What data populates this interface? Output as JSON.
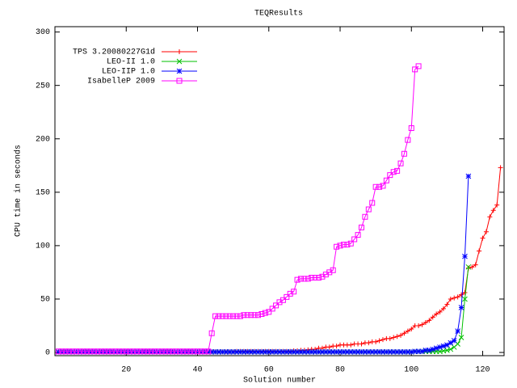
{
  "chart_data": {
    "type": "line",
    "title": "TEQResults",
    "x_label": "Solution number",
    "y_label": "CPU time in seconds",
    "xlim": [
      0,
      126
    ],
    "ylim": [
      -3,
      305
    ],
    "xticks": [
      20,
      40,
      60,
      80,
      100,
      120
    ],
    "yticks": [
      0,
      50,
      100,
      150,
      200,
      250,
      300
    ],
    "grid": false,
    "legend": "top-left",
    "x": [
      1,
      2,
      3,
      4,
      5,
      6,
      7,
      8,
      9,
      10,
      11,
      12,
      13,
      14,
      15,
      16,
      17,
      18,
      19,
      20,
      21,
      22,
      23,
      24,
      25,
      26,
      27,
      28,
      29,
      30,
      31,
      32,
      33,
      34,
      35,
      36,
      37,
      38,
      39,
      40,
      41,
      42,
      43,
      44,
      45,
      46,
      47,
      48,
      49,
      50,
      51,
      52,
      53,
      54,
      55,
      56,
      57,
      58,
      59,
      60,
      61,
      62,
      63,
      64,
      65,
      66,
      67,
      68,
      69,
      70,
      71,
      72,
      73,
      74,
      75,
      76,
      77,
      78,
      79,
      80,
      81,
      82,
      83,
      84,
      85,
      86,
      87,
      88,
      89,
      90,
      91,
      92,
      93,
      94,
      95,
      96,
      97,
      98,
      99,
      100,
      101,
      102,
      103,
      104,
      105,
      106,
      107,
      108,
      109,
      110,
      111,
      112,
      113,
      114,
      115,
      116,
      117,
      118,
      119,
      120,
      121,
      122,
      123,
      124,
      125
    ],
    "series": [
      {
        "name": "TPS 3.20080227G1d",
        "color": "#ff0000",
        "marker": "plus",
        "values": [
          0.5,
          0.5,
          0.5,
          0.5,
          0.5,
          0.5,
          0.5,
          0.5,
          0.5,
          0.5,
          0.5,
          0.5,
          0.5,
          0.5,
          0.5,
          0.5,
          0.5,
          0.5,
          0.5,
          0.5,
          0.5,
          0.5,
          0.5,
          0.5,
          0.5,
          0.5,
          0.5,
          0.5,
          0.5,
          0.5,
          0.5,
          0.5,
          0.5,
          0.5,
          0.5,
          0.5,
          0.5,
          0.5,
          0.5,
          0.5,
          0.5,
          0.5,
          0.5,
          0.5,
          0.5,
          0.5,
          0.5,
          0.5,
          0.5,
          0.5,
          1,
          1,
          1,
          1,
          1,
          1,
          1,
          1,
          1,
          1,
          1,
          1,
          1,
          1,
          1,
          1,
          1.5,
          1.5,
          2,
          2,
          2.5,
          3,
          3,
          4,
          4,
          5,
          5,
          6,
          6,
          7,
          7,
          7,
          7,
          8,
          8,
          8,
          9,
          9,
          10,
          10,
          11,
          12,
          13,
          13,
          14,
          15,
          16,
          18,
          20,
          22,
          25,
          25,
          26,
          28,
          30,
          33,
          36,
          38,
          41,
          45,
          50,
          51,
          52,
          54,
          56,
          79,
          80,
          82,
          95,
          107,
          113,
          127,
          133,
          138,
          173
        ]
      },
      {
        "name": "LEO-II 1.0",
        "color": "#00c000",
        "marker": "cross",
        "values": [
          0.5,
          0.5,
          0.5,
          0.5,
          0.5,
          0.5,
          0.5,
          0.5,
          0.5,
          0.5,
          0.5,
          0.5,
          0.5,
          0.5,
          0.5,
          0.5,
          0.5,
          0.5,
          0.5,
          0.5,
          0.5,
          0.5,
          0.5,
          0.5,
          0.5,
          0.5,
          0.5,
          0.5,
          0.5,
          0.5,
          0.5,
          0.5,
          0.5,
          0.5,
          0.5,
          0.5,
          0.5,
          0.5,
          0.5,
          0.5,
          0.5,
          0.5,
          0.5,
          0.5,
          0.5,
          0.5,
          0.5,
          0.5,
          0.5,
          0.5,
          0.5,
          0.5,
          0.5,
          0.5,
          0.5,
          0.5,
          0.5,
          0.5,
          0.5,
          0.5,
          0.5,
          0.5,
          0.5,
          0.5,
          0.5,
          0.5,
          0.5,
          0.5,
          0.5,
          0.5,
          0.5,
          0.5,
          0.5,
          0.5,
          0.5,
          0.5,
          0.5,
          0.5,
          0.5,
          0.5,
          0.5,
          0.5,
          0.5,
          0.5,
          0.5,
          0.5,
          0.5,
          0.5,
          0.5,
          0.5,
          0.5,
          0.5,
          0.5,
          0.5,
          0.5,
          0.5,
          0.5,
          0.5,
          0.5,
          0.5,
          1,
          1,
          1,
          1,
          1,
          1,
          1,
          1,
          1.5,
          2,
          3,
          5,
          8,
          14,
          50,
          80,
          null,
          null,
          null,
          null,
          null,
          null,
          null,
          null,
          null
        ]
      },
      {
        "name": "LEO-IIP 1.0",
        "color": "#0000ff",
        "marker": "star",
        "values": [
          0.5,
          0.5,
          0.5,
          0.5,
          0.5,
          0.5,
          0.5,
          0.5,
          0.5,
          0.5,
          0.5,
          0.5,
          0.5,
          0.5,
          0.5,
          0.5,
          0.5,
          0.5,
          0.5,
          0.5,
          0.5,
          0.5,
          0.5,
          0.5,
          0.5,
          0.5,
          0.5,
          0.5,
          0.5,
          0.5,
          0.5,
          0.5,
          0.5,
          0.5,
          0.5,
          0.5,
          0.5,
          0.5,
          0.5,
          0.5,
          0.5,
          0.5,
          0.5,
          0.5,
          0.5,
          0.5,
          0.5,
          0.5,
          0.5,
          0.5,
          0.5,
          0.5,
          0.5,
          0.5,
          0.5,
          0.5,
          0.5,
          0.5,
          0.5,
          0.5,
          0.5,
          0.5,
          0.5,
          0.5,
          0.5,
          0.5,
          0.5,
          0.5,
          0.5,
          0.5,
          0.5,
          0.5,
          0.5,
          0.5,
          0.5,
          0.5,
          0.5,
          0.5,
          0.5,
          0.5,
          0.5,
          0.5,
          0.5,
          0.5,
          0.5,
          0.5,
          0.5,
          0.5,
          0.5,
          0.5,
          0.5,
          0.5,
          0.5,
          0.5,
          0.5,
          0.5,
          0.5,
          0.5,
          0.5,
          0.5,
          1,
          1,
          1,
          2,
          2,
          3,
          4,
          5,
          6,
          7,
          9,
          11,
          20,
          42,
          90,
          165,
          null,
          null,
          null,
          null,
          null,
          null,
          null,
          null,
          null
        ]
      },
      {
        "name": "IsabelleP 2009",
        "color": "#ff00ff",
        "marker": "square",
        "values": [
          1,
          1,
          1,
          1,
          1,
          1,
          1,
          1,
          1,
          1,
          1,
          1,
          1,
          1,
          1,
          1,
          1,
          1,
          1,
          1,
          1,
          1,
          1,
          1,
          1,
          1,
          1,
          1,
          1,
          1,
          1,
          1,
          1,
          1,
          1,
          1,
          1,
          1,
          1,
          1,
          1,
          1,
          1,
          18,
          34,
          34,
          34,
          34,
          34,
          34,
          34,
          34,
          35,
          35,
          35,
          35,
          35,
          36,
          37,
          38,
          41,
          44,
          47,
          49,
          52,
          55,
          57,
          68,
          69,
          69,
          69,
          70,
          70,
          70,
          71,
          73,
          75,
          77,
          99,
          100,
          101,
          101,
          102,
          106,
          110,
          117,
          127,
          134,
          140,
          155,
          155,
          156,
          161,
          166,
          169,
          170,
          177,
          186,
          199,
          210,
          265,
          268,
          null,
          null,
          null,
          null,
          null,
          null,
          null,
          null,
          null,
          null,
          null,
          null,
          null,
          null,
          null,
          null,
          null,
          null,
          null,
          null,
          null,
          null,
          null
        ]
      }
    ]
  }
}
